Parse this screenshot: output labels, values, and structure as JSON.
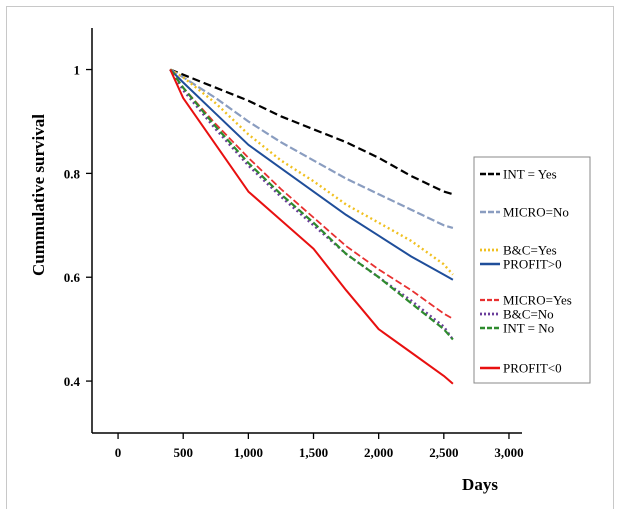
{
  "chart_data": {
    "type": "line",
    "xlabel": "Days",
    "ylabel": "Cummulative survival",
    "xlim": [
      -200,
      3100
    ],
    "ylim": [
      0.3,
      1.08
    ],
    "x_ticks": [
      {
        "value": 0,
        "label": "0"
      },
      {
        "value": 500,
        "label": "500"
      },
      {
        "value": 1000,
        "label": "1,000"
      },
      {
        "value": 1500,
        "label": "1,500"
      },
      {
        "value": 2000,
        "label": "2,000"
      },
      {
        "value": 2500,
        "label": "2,500"
      },
      {
        "value": 3000,
        "label": "3,000"
      }
    ],
    "y_ticks": [
      {
        "value": 1.0,
        "label": "1"
      },
      {
        "value": 0.8,
        "label": "0.8"
      },
      {
        "value": 0.6,
        "label": "0.6"
      },
      {
        "value": 0.4,
        "label": "0.4"
      }
    ],
    "grid": false,
    "legend_position": "right",
    "series": [
      {
        "name": "INT = Yes",
        "color": "#000000",
        "dash": "8,4",
        "width": 2.2,
        "x": [
          400,
          500,
          750,
          1000,
          1250,
          1500,
          1750,
          2000,
          2250,
          2500,
          2570
        ],
        "y": [
          1.0,
          0.99,
          0.965,
          0.94,
          0.91,
          0.885,
          0.86,
          0.83,
          0.795,
          0.765,
          0.76
        ]
      },
      {
        "name": "MICRO=No",
        "color": "#8a9dc0",
        "dash": "8,3",
        "width": 2.2,
        "x": [
          400,
          500,
          750,
          1000,
          1250,
          1500,
          1750,
          2000,
          2250,
          2500,
          2570
        ],
        "y": [
          1.0,
          0.985,
          0.945,
          0.9,
          0.86,
          0.825,
          0.79,
          0.76,
          0.73,
          0.7,
          0.695
        ]
      },
      {
        "name": "B&C=Yes",
        "color": "#f0c020",
        "dash": "2,3",
        "width": 2.4,
        "x": [
          400,
          500,
          750,
          1000,
          1250,
          1500,
          1750,
          2000,
          2250,
          2500,
          2570
        ],
        "y": [
          1.0,
          0.985,
          0.935,
          0.875,
          0.825,
          0.785,
          0.74,
          0.705,
          0.67,
          0.625,
          0.605
        ]
      },
      {
        "name": "PROFIT>0",
        "color": "#1f4e9a",
        "dash": "",
        "width": 2.0,
        "x": [
          400,
          500,
          750,
          1000,
          1250,
          1500,
          1750,
          2000,
          2250,
          2500,
          2570
        ],
        "y": [
          1.0,
          0.975,
          0.915,
          0.855,
          0.81,
          0.765,
          0.72,
          0.68,
          0.64,
          0.605,
          0.595
        ]
      },
      {
        "name": "MICRO=Yes",
        "color": "#e83030",
        "dash": "7,3",
        "width": 1.8,
        "x": [
          400,
          500,
          750,
          1000,
          1250,
          1500,
          1750,
          2000,
          2250,
          2500,
          2570
        ],
        "y": [
          1.0,
          0.965,
          0.895,
          0.83,
          0.77,
          0.715,
          0.66,
          0.615,
          0.575,
          0.53,
          0.52
        ]
      },
      {
        "name": "B&C=No",
        "color": "#6a3d9a",
        "dash": "2,3",
        "width": 2.4,
        "x": [
          400,
          500,
          750,
          1000,
          1250,
          1500,
          1750,
          2000,
          2250,
          2500,
          2570
        ],
        "y": [
          1.0,
          0.96,
          0.885,
          0.815,
          0.755,
          0.7,
          0.645,
          0.6,
          0.555,
          0.505,
          0.48
        ]
      },
      {
        "name": "INT = No",
        "color": "#2e8b2e",
        "dash": "7,3",
        "width": 2.2,
        "x": [
          400,
          500,
          750,
          1000,
          1250,
          1500,
          1750,
          2000,
          2250,
          2500,
          2570
        ],
        "y": [
          1.0,
          0.965,
          0.89,
          0.82,
          0.76,
          0.705,
          0.645,
          0.6,
          0.55,
          0.5,
          0.48
        ]
      },
      {
        "name": "PROFIT<0",
        "color": "#e81010",
        "dash": "",
        "width": 2.0,
        "x": [
          400,
          500,
          750,
          1000,
          1250,
          1500,
          1750,
          2000,
          2250,
          2500,
          2570
        ],
        "y": [
          1.0,
          0.945,
          0.855,
          0.765,
          0.71,
          0.655,
          0.575,
          0.5,
          0.455,
          0.41,
          0.395
        ]
      }
    ]
  }
}
